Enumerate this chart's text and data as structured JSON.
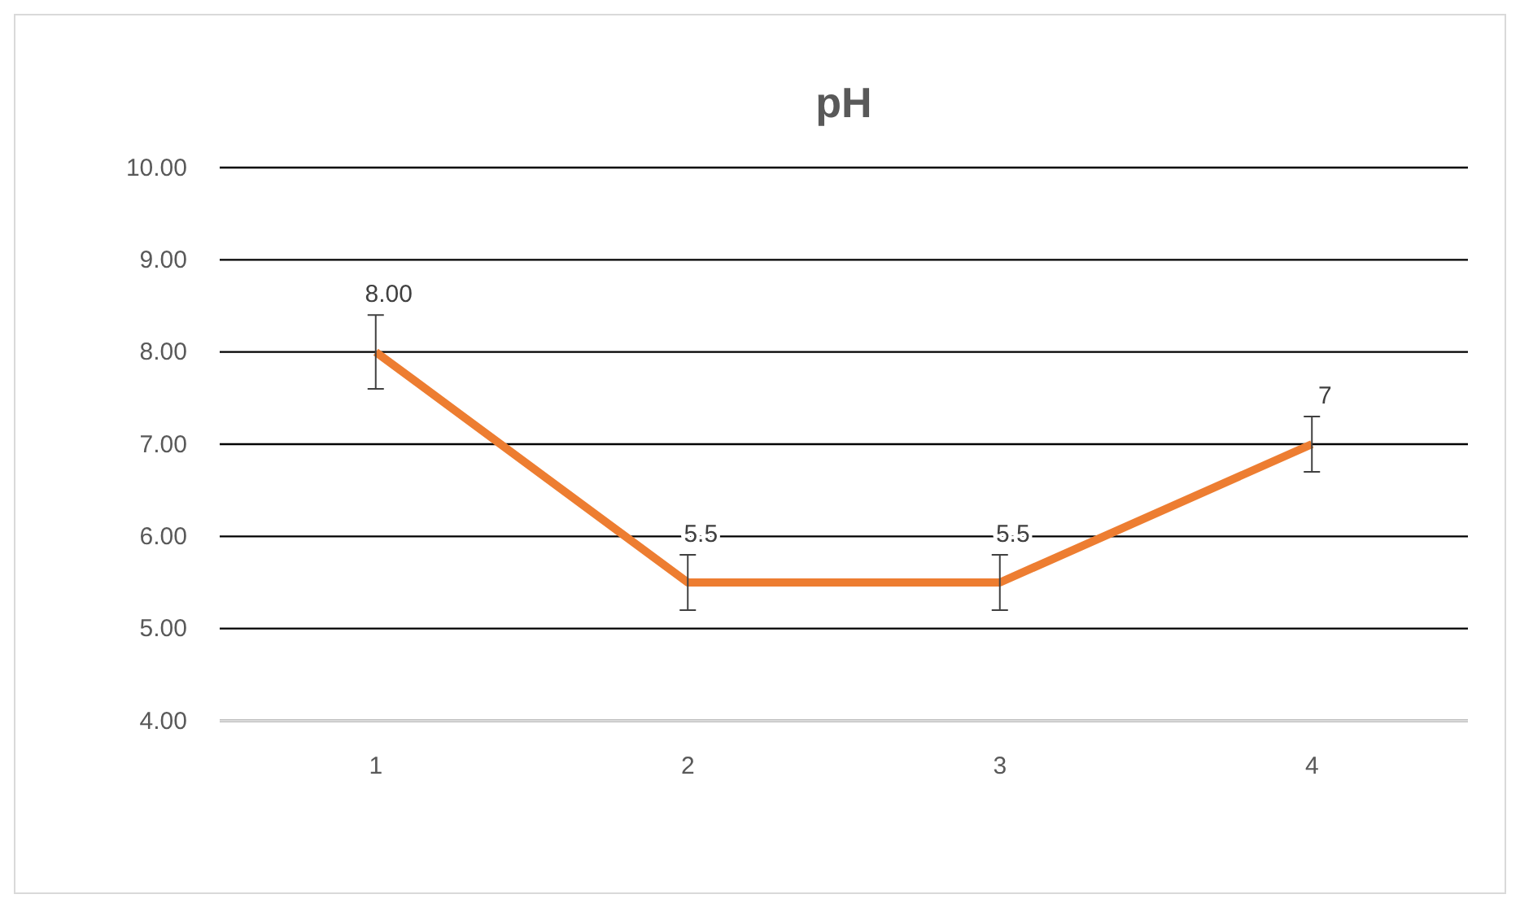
{
  "chart_data": {
    "type": "line",
    "title": "pH",
    "categories": [
      "1",
      "2",
      "3",
      "4"
    ],
    "series": [
      {
        "color": "#ed7d31",
        "values": [
          8,
          5.5,
          5.5,
          7
        ],
        "errors": [
          0.4,
          0.3,
          0.3,
          0.3
        ],
        "value_labels": [
          "8.00",
          "5.5",
          "5.5",
          "7"
        ]
      }
    ],
    "ylim": [
      4,
      10
    ],
    "yticks": [
      {
        "value": 4,
        "label": "4.00"
      },
      {
        "value": 5,
        "label": "5.00"
      },
      {
        "value": 6,
        "label": "6.00"
      },
      {
        "value": 7,
        "label": "7.00"
      },
      {
        "value": 8,
        "label": "8.00"
      },
      {
        "value": 9,
        "label": "9.00"
      },
      {
        "value": 10,
        "label": "10.00"
      }
    ],
    "grid": "y",
    "marker": "none",
    "line_style": "solid"
  }
}
